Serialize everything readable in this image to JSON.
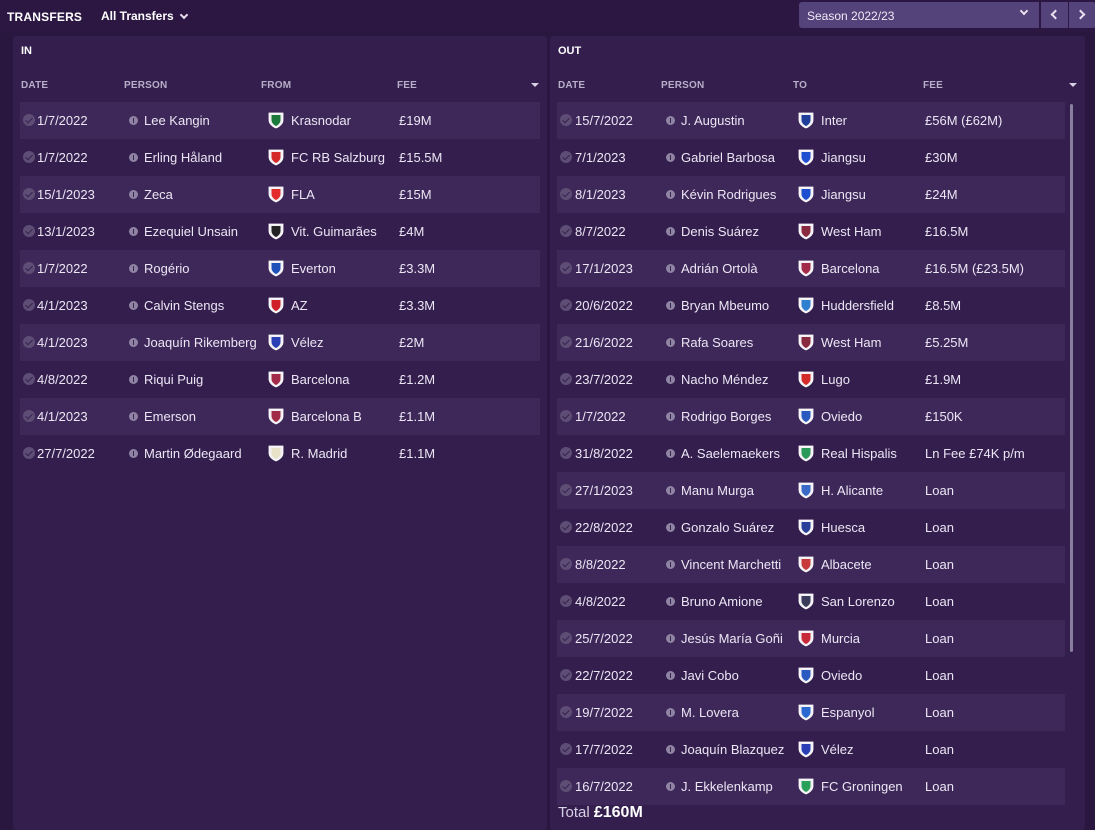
{
  "header": {
    "title": "TRANSFERS",
    "filter": "All Transfers",
    "season": "Season 2022/23"
  },
  "in_panel": {
    "title": "IN",
    "columns": {
      "date": "DATE",
      "person": "PERSON",
      "club": "FROM",
      "fee": "FEE"
    },
    "rows": [
      {
        "date": "1/7/2022",
        "person": "Lee Kangin",
        "club": "Krasnodar",
        "fee": "£19M",
        "badge_color": "#1b7a3b"
      },
      {
        "date": "1/7/2022",
        "person": "Erling Håland",
        "club": "FC RB Salzburg",
        "fee": "£15.5M",
        "badge_color": "#d42a2a"
      },
      {
        "date": "15/1/2023",
        "person": "Zeca",
        "club": "FLA",
        "fee": "£15M",
        "badge_color": "#e32b2b"
      },
      {
        "date": "13/1/2023",
        "person": "Ezequiel Unsain",
        "club": "Vit. Guimarães",
        "fee": "£4M",
        "badge_color": "#222222"
      },
      {
        "date": "1/7/2022",
        "person": "Rogério",
        "club": "Everton",
        "fee": "£3.3M",
        "badge_color": "#1f4fb8"
      },
      {
        "date": "4/1/2023",
        "person": "Calvin Stengs",
        "club": "AZ",
        "fee": "£3.3M",
        "badge_color": "#d11f2a"
      },
      {
        "date": "4/1/2023",
        "person": "Joaquín Rikemberg",
        "club": "Vélez",
        "fee": "£2M",
        "badge_color": "#2a3fb5"
      },
      {
        "date": "4/8/2022",
        "person": "Riqui Puig",
        "club": "Barcelona",
        "fee": "£1.2M",
        "badge_color": "#a32b4a"
      },
      {
        "date": "4/1/2023",
        "person": "Emerson",
        "club": "Barcelona B",
        "fee": "£1.1M",
        "badge_color": "#a32b4a"
      },
      {
        "date": "27/7/2022",
        "person": "Martin Ødegaard",
        "club": "R. Madrid",
        "fee": "£1.1M",
        "badge_color": "#e8e2c8"
      }
    ]
  },
  "out_panel": {
    "title": "OUT",
    "columns": {
      "date": "DATE",
      "person": "PERSON",
      "club": "TO",
      "fee": "FEE"
    },
    "rows": [
      {
        "date": "15/7/2022",
        "person": "J. Augustin",
        "club": "Inter",
        "fee": "£56M (£62M)",
        "badge_color": "#1f3f9a"
      },
      {
        "date": "7/1/2023",
        "person": "Gabriel Barbosa",
        "club": "Jiangsu",
        "fee": "£30M",
        "badge_color": "#1d4fd0"
      },
      {
        "date": "8/1/2023",
        "person": "Kévin Rodrigues",
        "club": "Jiangsu",
        "fee": "£24M",
        "badge_color": "#1d4fd0"
      },
      {
        "date": "8/7/2022",
        "person": "Denis Suárez",
        "club": "West Ham",
        "fee": "£16.5M",
        "badge_color": "#8a2a3f"
      },
      {
        "date": "17/1/2023",
        "person": "Adrián Ortolà",
        "club": "Barcelona",
        "fee": "£16.5M (£23.5M)",
        "badge_color": "#a32b4a"
      },
      {
        "date": "20/6/2022",
        "person": "Bryan Mbeumo",
        "club": "Huddersfield",
        "fee": "£8.5M",
        "badge_color": "#2f7fd0"
      },
      {
        "date": "21/6/2022",
        "person": "Rafa Soares",
        "club": "West Ham",
        "fee": "£5.25M",
        "badge_color": "#8a2a3f"
      },
      {
        "date": "23/7/2022",
        "person": "Nacho Méndez",
        "club": "Lugo",
        "fee": "£1.9M",
        "badge_color": "#d42a2a"
      },
      {
        "date": "1/7/2022",
        "person": "Rodrigo Borges",
        "club": "Oviedo",
        "fee": "£150K",
        "badge_color": "#2a5ac0"
      },
      {
        "date": "31/8/2022",
        "person": "A. Saelemaekers",
        "club": "Real Hispalis",
        "fee": "Ln Fee £74K p/m",
        "badge_color": "#2a9a5a"
      },
      {
        "date": "27/1/2023",
        "person": "Manu Murga",
        "club": "H. Alicante",
        "fee": "Loan",
        "badge_color": "#3a6ac8"
      },
      {
        "date": "22/8/2022",
        "person": "Gonzalo Suárez",
        "club": "Huesca",
        "fee": "Loan",
        "badge_color": "#2a3f9a"
      },
      {
        "date": "8/8/2022",
        "person": "Vincent Marchetti",
        "club": "Albacete",
        "fee": "Loan",
        "badge_color": "#c83a3a"
      },
      {
        "date": "4/8/2022",
        "person": "Bruno Amione",
        "club": "San Lorenzo",
        "fee": "Loan",
        "badge_color": "#3a3a5a"
      },
      {
        "date": "25/7/2022",
        "person": "Jesús María Goñi",
        "club": "Murcia",
        "fee": "Loan",
        "badge_color": "#c82a3a"
      },
      {
        "date": "22/7/2022",
        "person": "Javi Cobo",
        "club": "Oviedo",
        "fee": "Loan",
        "badge_color": "#2a5ac0"
      },
      {
        "date": "19/7/2022",
        "person": "M. Lovera",
        "club": "Espanyol",
        "fee": "Loan",
        "badge_color": "#2a6ad0"
      },
      {
        "date": "17/7/2022",
        "person": "Joaquín Blazquez",
        "club": "Vélez",
        "fee": "Loan",
        "badge_color": "#2a3fb5"
      },
      {
        "date": "16/7/2022",
        "person": "J. Ekkelenkamp",
        "club": "FC Groningen",
        "fee": "Loan",
        "badge_color": "#2aa05a"
      }
    ],
    "total_label": "Total",
    "total_value": "£160M"
  }
}
